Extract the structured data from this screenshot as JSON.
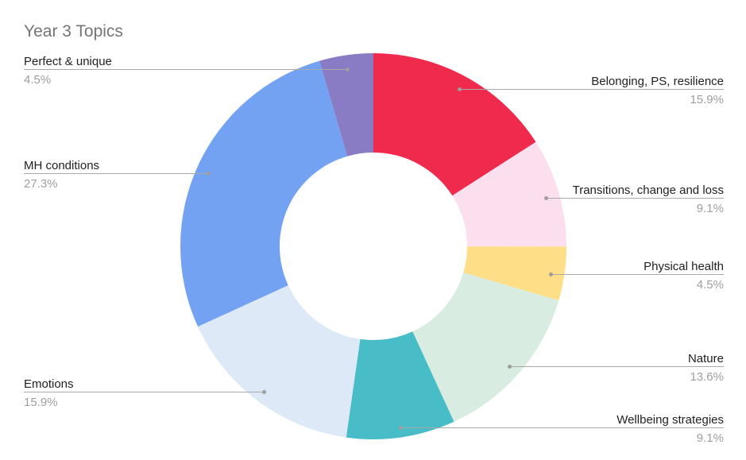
{
  "title": "Year 3 Topics",
  "styles": {
    "title_color": "#757575",
    "label_color": "#202124",
    "percent_color": "#9e9e9e",
    "leader_line_color": "#a9a9a9",
    "background": "#ffffff"
  },
  "chart_data": {
    "type": "pie",
    "subtype": "donut",
    "title": "Year 3 Topics",
    "hole_ratio": 0.486,
    "start_angle_deg": 0,
    "direction": "clockwise",
    "legend_position": "labeled-callouts",
    "slices": [
      {
        "label": "Belonging, PS, resilience",
        "value": 15.9,
        "display": "15.9%",
        "color": "#f02a4d"
      },
      {
        "label": "Transitions, change and loss",
        "value": 9.1,
        "display": "9.1%",
        "color": "#fcdfee"
      },
      {
        "label": "Physical health",
        "value": 4.5,
        "display": "4.5%",
        "color": "#fedf87"
      },
      {
        "label": "Nature",
        "value": 13.6,
        "display": "13.6%",
        "color": "#d8ece1"
      },
      {
        "label": "Wellbeing strategies",
        "value": 9.1,
        "display": "9.1%",
        "color": "#49bdc7"
      },
      {
        "label": "Emotions",
        "value": 15.9,
        "display": "15.9%",
        "color": "#dde9f6"
      },
      {
        "label": "MH conditions",
        "value": 27.3,
        "display": "27.3%",
        "color": "#74a2f2"
      },
      {
        "label": "Perfect & unique",
        "value": 4.5,
        "display": "4.5%",
        "color": "#8a7cc4"
      }
    ]
  }
}
